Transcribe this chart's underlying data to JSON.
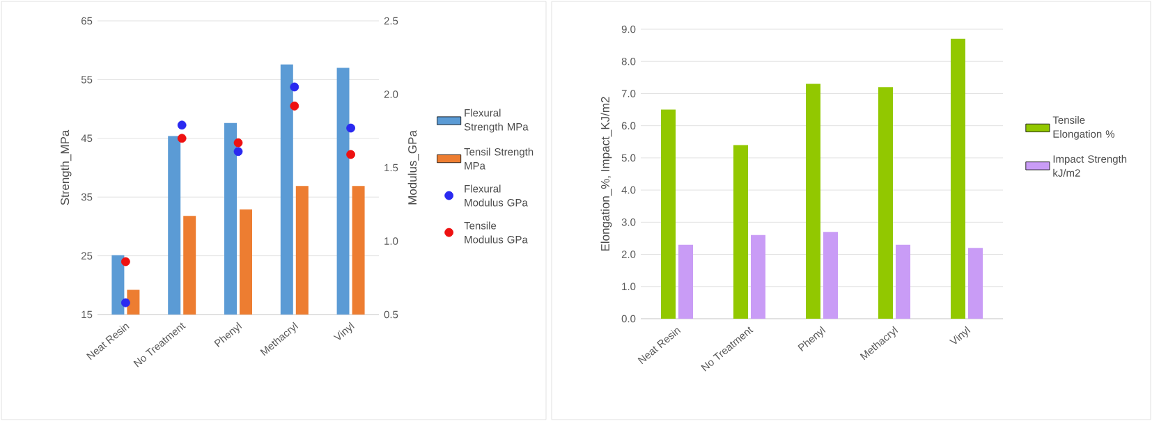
{
  "chart_data": [
    {
      "type": "bar",
      "categories": [
        "Neat Resin",
        "No Treatment",
        "Phenyl",
        "Methacryl",
        "Vinyl"
      ],
      "ylabel": "Strength_MPa",
      "y2label": "Modulus_GPa",
      "ylim": [
        15,
        65
      ],
      "yticks": [
        15,
        25,
        35,
        45,
        55,
        65
      ],
      "y2lim": [
        0.5,
        2.5
      ],
      "y2ticks": [
        0.5,
        {
          "value": 1,
          "label": "1.0"
        },
        1.5,
        {
          "value": 2,
          "label": "2.0"
        },
        2.5
      ],
      "grid": "y",
      "legend": "right",
      "marker": "circle",
      "series": [
        {
          "name": "Flexural Strength MPa",
          "color": "#5b9bd5",
          "values": [
            25.1,
            45.4,
            47.6,
            57.6,
            57.0
          ]
        },
        {
          "name": "Tensil Strength MPa",
          "color": "#ed7d31",
          "values": [
            19.2,
            31.8,
            32.9,
            36.9,
            36.9
          ]
        },
        {
          "name": "Flexural Modulus GPa",
          "type": "scatter",
          "axis": "y2",
          "color": "#2a2af0",
          "values": [
            0.58,
            1.79,
            1.61,
            2.05,
            1.77
          ]
        },
        {
          "name": "Tensile Modulus GPa",
          "type": "scatter",
          "axis": "y2",
          "color": "#ee1111",
          "values": [
            0.86,
            1.7,
            1.67,
            1.92,
            1.59
          ]
        }
      ]
    },
    {
      "type": "bar",
      "categories": [
        "Neat Resin",
        "No Treatment",
        "Phenyl",
        "Methacryl",
        "Vinyl"
      ],
      "ylabel": "Elongation_%, Impact_KJ/m2",
      "ylim": [
        0,
        9
      ],
      "yticks": [
        {
          "value": 0,
          "label": "0.0"
        },
        {
          "value": 1,
          "label": "1.0"
        },
        {
          "value": 2,
          "label": "2.0"
        },
        {
          "value": 3,
          "label": "3.0"
        },
        {
          "value": 4,
          "label": "4.0"
        },
        {
          "value": 5,
          "label": "5.0"
        },
        {
          "value": 6,
          "label": "6.0"
        },
        {
          "value": 7,
          "label": "7.0"
        },
        {
          "value": 8,
          "label": "8.0"
        },
        {
          "value": 9,
          "label": "9.0"
        }
      ],
      "grid": "y",
      "legend": "right",
      "series": [
        {
          "name": "Tensile Elongation %",
          "color": "#92c800",
          "values": [
            6.5,
            5.4,
            7.3,
            7.2,
            8.7
          ]
        },
        {
          "name": "Impact Strength kJ/m2",
          "color": "#c99cf6",
          "values": [
            2.3,
            2.6,
            2.7,
            2.3,
            2.2
          ]
        }
      ]
    }
  ]
}
